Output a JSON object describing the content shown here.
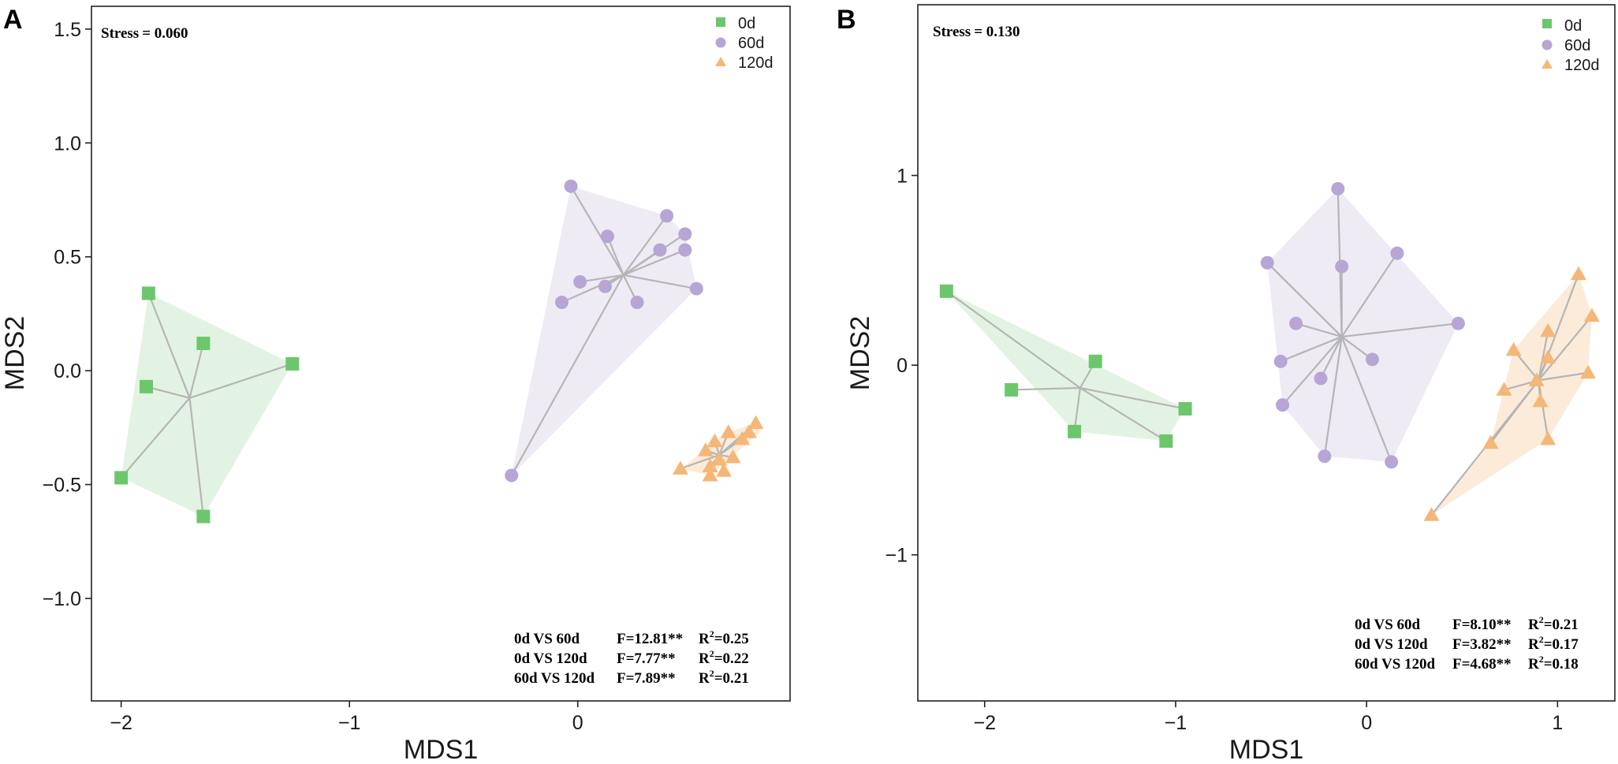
{
  "chart_data": [
    {
      "type": "scatter",
      "panel_label": "A",
      "xlabel": "MDS1",
      "ylabel": "MDS2",
      "xlim": [
        -2.13,
        0.93
      ],
      "ylim": [
        -1.45,
        1.6
      ],
      "xticks": [
        -2,
        -1,
        0
      ],
      "yticks": [
        1.5,
        1.0,
        0.5,
        0.0,
        -0.5,
        -1.0
      ],
      "xtick_labels": [
        "−2",
        "−1",
        "0"
      ],
      "ytick_labels": [
        "1.5",
        "1.0",
        "0.5",
        "0.0",
        "−0.5",
        "−1.0"
      ],
      "grid": false,
      "legend_position": "top-right",
      "stress_label": "Stress",
      "stress_value": "= 0.060",
      "stats": [
        {
          "comparison": "0d VS 60d",
          "f": "F=12.81**",
          "r2_label": "R",
          "r2_sup": "2",
          "r2_value": "=0.25"
        },
        {
          "comparison": "0d VS 120d",
          "f": "F=7.77**",
          "r2_label": "R",
          "r2_sup": "2",
          "r2_value": "=0.22"
        },
        {
          "comparison": "60d VS 120d",
          "f": "F=7.89**",
          "r2_label": "R",
          "r2_sup": "2",
          "r2_value": "=0.21"
        }
      ],
      "series": [
        {
          "name": "0d",
          "marker": "square",
          "color": "#6cc76c",
          "fill": "#d9efd9",
          "centroid": [
            -1.7,
            -0.12
          ],
          "hull": [
            [
              -1.88,
              0.34
            ],
            [
              -1.25,
              0.03
            ],
            [
              -1.64,
              -0.64
            ],
            [
              -2.0,
              -0.47
            ]
          ],
          "points": [
            [
              -1.88,
              0.34
            ],
            [
              -1.64,
              0.12
            ],
            [
              -1.25,
              0.03
            ],
            [
              -1.89,
              -0.07
            ],
            [
              -2.0,
              -0.47
            ],
            [
              -1.64,
              -0.64
            ]
          ]
        },
        {
          "name": "60d",
          "marker": "circle",
          "color": "#b7a5d6",
          "fill": "#e8e4f2",
          "centroid": [
            0.2,
            0.42
          ],
          "hull": [
            [
              -0.03,
              0.81
            ],
            [
              0.39,
              0.68
            ],
            [
              0.47,
              0.6
            ],
            [
              0.52,
              0.36
            ],
            [
              -0.29,
              -0.46
            ]
          ],
          "points": [
            [
              -0.03,
              0.81
            ],
            [
              0.13,
              0.59
            ],
            [
              0.39,
              0.68
            ],
            [
              0.47,
              0.6
            ],
            [
              0.36,
              0.53
            ],
            [
              0.47,
              0.53
            ],
            [
              0.01,
              0.39
            ],
            [
              0.12,
              0.37
            ],
            [
              0.52,
              0.36
            ],
            [
              -0.07,
              0.3
            ],
            [
              0.26,
              0.3
            ],
            [
              -0.29,
              -0.46
            ]
          ]
        },
        {
          "name": "120d",
          "marker": "triangle",
          "color": "#f5b777",
          "fill": "#fbe4cc",
          "centroid": [
            0.62,
            -0.37
          ],
          "hull": [
            [
              0.78,
              -0.23
            ],
            [
              0.8,
              -0.27
            ],
            [
              0.58,
              -0.46
            ],
            [
              0.45,
              -0.43
            ],
            [
              0.66,
              -0.27
            ]
          ],
          "points": [
            [
              0.78,
              -0.23
            ],
            [
              0.66,
              -0.27
            ],
            [
              0.75,
              -0.27
            ],
            [
              0.72,
              -0.3
            ],
            [
              0.6,
              -0.31
            ],
            [
              0.56,
              -0.35
            ],
            [
              0.62,
              -0.39
            ],
            [
              0.68,
              -0.38
            ],
            [
              0.58,
              -0.42
            ],
            [
              0.45,
              -0.43
            ],
            [
              0.64,
              -0.44
            ],
            [
              0.58,
              -0.46
            ]
          ]
        }
      ]
    },
    {
      "type": "scatter",
      "panel_label": "B",
      "xlabel": "MDS1",
      "ylabel": "MDS2",
      "xlim": [
        -2.35,
        1.3
      ],
      "ylim": [
        -1.77,
        1.9
      ],
      "xticks": [
        -2,
        -1,
        0,
        1
      ],
      "yticks": [
        1,
        0,
        -1
      ],
      "xtick_labels": [
        "−2",
        "−1",
        "0",
        "1"
      ],
      "ytick_labels": [
        "1",
        "0",
        "−1"
      ],
      "grid": false,
      "legend_position": "top-right",
      "stress_label": "Stress",
      "stress_value": "= 0.130",
      "stats": [
        {
          "comparison": "0d VS 60d",
          "f": "F=8.10**",
          "r2_label": "R",
          "r2_sup": "2",
          "r2_value": "=0.21"
        },
        {
          "comparison": "0d VS 120d",
          "f": "F=3.82**",
          "r2_label": "R",
          "r2_sup": "2",
          "r2_value": "=0.17"
        },
        {
          "comparison": "60d VS 120d",
          "f": "F=4.68**",
          "r2_label": "R",
          "r2_sup": "2",
          "r2_value": "=0.18"
        }
      ],
      "series": [
        {
          "name": "0d",
          "marker": "square",
          "color": "#6cc76c",
          "fill": "#d9efd9",
          "centroid": [
            -1.5,
            -0.12
          ],
          "hull": [
            [
              -2.2,
              0.39
            ],
            [
              -0.95,
              -0.23
            ],
            [
              -1.05,
              -0.4
            ],
            [
              -1.53,
              -0.35
            ]
          ],
          "points": [
            [
              -2.2,
              0.39
            ],
            [
              -1.42,
              0.02
            ],
            [
              -1.86,
              -0.13
            ],
            [
              -0.95,
              -0.23
            ],
            [
              -1.53,
              -0.35
            ],
            [
              -1.05,
              -0.4
            ]
          ]
        },
        {
          "name": "60d",
          "marker": "circle",
          "color": "#b7a5d6",
          "fill": "#e8e4f2",
          "centroid": [
            -0.13,
            0.15
          ],
          "hull": [
            [
              -0.52,
              0.54
            ],
            [
              -0.15,
              0.93
            ],
            [
              0.48,
              0.22
            ],
            [
              0.13,
              -0.51
            ],
            [
              -0.22,
              -0.48
            ],
            [
              -0.44,
              -0.21
            ]
          ],
          "points": [
            [
              -0.15,
              0.93
            ],
            [
              0.16,
              0.59
            ],
            [
              -0.52,
              0.54
            ],
            [
              -0.13,
              0.52
            ],
            [
              -0.37,
              0.22
            ],
            [
              0.48,
              0.22
            ],
            [
              -0.45,
              0.02
            ],
            [
              0.03,
              0.03
            ],
            [
              -0.24,
              -0.07
            ],
            [
              -0.44,
              -0.21
            ],
            [
              -0.22,
              -0.48
            ],
            [
              0.13,
              -0.51
            ]
          ]
        },
        {
          "name": "120d",
          "marker": "triangle",
          "color": "#f5b777",
          "fill": "#fbe4cc",
          "centroid": [
            0.9,
            -0.08
          ],
          "hull": [
            [
              1.11,
              0.48
            ],
            [
              1.18,
              0.26
            ],
            [
              1.16,
              -0.04
            ],
            [
              0.95,
              -0.39
            ],
            [
              0.34,
              -0.79
            ],
            [
              0.65,
              -0.41
            ],
            [
              0.77,
              0.08
            ]
          ],
          "points": [
            [
              1.11,
              0.48
            ],
            [
              1.18,
              0.26
            ],
            [
              0.95,
              0.18
            ],
            [
              0.77,
              0.08
            ],
            [
              0.95,
              0.04
            ],
            [
              1.16,
              -0.04
            ],
            [
              0.89,
              -0.08
            ],
            [
              0.72,
              -0.13
            ],
            [
              0.91,
              -0.19
            ],
            [
              0.95,
              -0.39
            ],
            [
              0.65,
              -0.41
            ],
            [
              0.34,
              -0.79
            ]
          ]
        }
      ]
    }
  ]
}
